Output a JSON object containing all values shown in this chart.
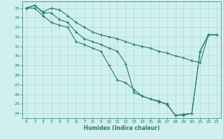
{
  "xlabel": "Humidex (Indice chaleur)",
  "bg_color": "#cff0ee",
  "grid_color": "#aadada",
  "line_color": "#2a7a72",
  "xlim": [
    -0.5,
    23.5
  ],
  "ylim": [
    23.5,
    35.7
  ],
  "yticks": [
    24,
    25,
    26,
    27,
    28,
    29,
    30,
    31,
    32,
    33,
    34,
    35
  ],
  "xticks": [
    0,
    1,
    2,
    3,
    4,
    5,
    6,
    7,
    8,
    9,
    10,
    11,
    12,
    13,
    14,
    15,
    16,
    17,
    18,
    19,
    20,
    21,
    22,
    23
  ],
  "series": [
    {
      "x": [
        0,
        1,
        2,
        3,
        4,
        5,
        6,
        7,
        8,
        9,
        10,
        11,
        12,
        13,
        14,
        15,
        16,
        17,
        18,
        19,
        20,
        21,
        22,
        23
      ],
      "y": [
        35.0,
        35.3,
        34.6,
        35.0,
        34.8,
        34.2,
        33.5,
        33.0,
        32.5,
        32.2,
        32.0,
        31.8,
        31.5,
        31.2,
        31.0,
        30.8,
        30.5,
        30.3,
        30.0,
        29.8,
        29.5,
        29.3,
        32.2,
        32.2
      ]
    },
    {
      "x": [
        0,
        1,
        2,
        3,
        4,
        5,
        6,
        7,
        8,
        9,
        10,
        11,
        12,
        13,
        14,
        15,
        16,
        17,
        18,
        19,
        20,
        21,
        22,
        23
      ],
      "y": [
        35.0,
        35.3,
        34.5,
        34.5,
        33.8,
        33.5,
        32.5,
        31.8,
        31.5,
        31.2,
        30.8,
        30.5,
        29.2,
        26.2,
        25.8,
        25.5,
        25.3,
        24.9,
        23.8,
        23.8,
        24.0,
        30.5,
        32.2,
        32.2
      ]
    },
    {
      "x": [
        0,
        1,
        2,
        3,
        4,
        5,
        6,
        7,
        8,
        9,
        10,
        11,
        12,
        13,
        14,
        15,
        16,
        17,
        18,
        19,
        20,
        21,
        22,
        23
      ],
      "y": [
        35.0,
        35.0,
        34.2,
        33.5,
        33.2,
        33.0,
        31.5,
        31.2,
        30.8,
        30.5,
        29.0,
        27.5,
        27.2,
        26.5,
        25.8,
        25.5,
        25.2,
        25.0,
        23.8,
        23.9,
        24.0,
        30.5,
        32.2,
        32.2
      ]
    }
  ]
}
